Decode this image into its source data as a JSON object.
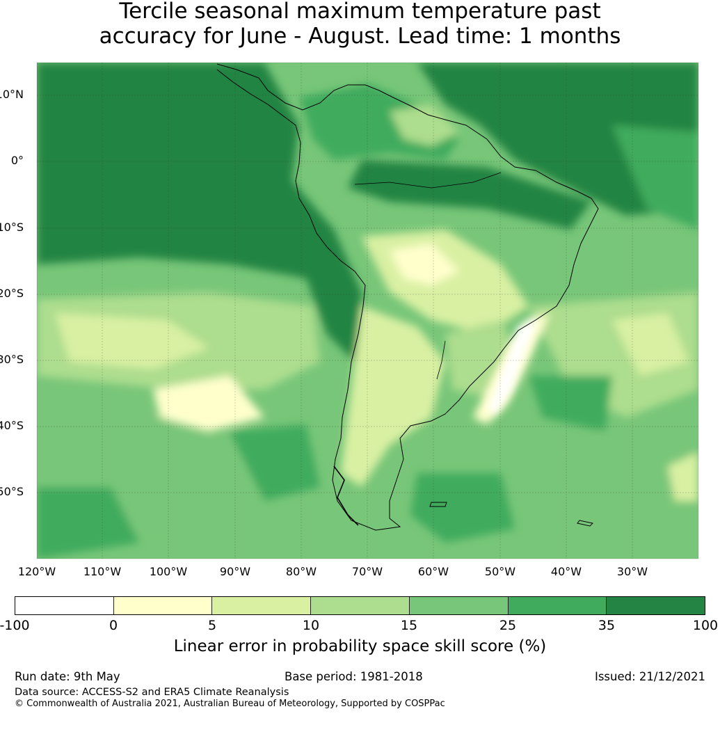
{
  "title": {
    "line1": "Tercile seasonal maximum temperature past",
    "line2": "accuracy for June - August. Lead time: 1 months"
  },
  "map": {
    "lat_labels": [
      "10°N",
      "0°",
      "10°S",
      "20°S",
      "30°S",
      "40°S",
      "50°S"
    ],
    "lon_labels": [
      "120°W",
      "110°W",
      "100°W",
      "90°W",
      "80°W",
      "70°W",
      "60°W",
      "50°W",
      "40°W",
      "30°W"
    ]
  },
  "colorbar": {
    "ticks": [
      "-100",
      "0",
      "5",
      "10",
      "15",
      "25",
      "35",
      "100"
    ],
    "colors": [
      "#ffffff",
      "#ffffcc",
      "#d9f0a3",
      "#addd8e",
      "#78c679",
      "#41ab5d",
      "#238443"
    ],
    "label": "Linear error in probability space skill score (%)"
  },
  "footer": {
    "run_date": "Run date: 9th May",
    "base_period": "Base period: 1981-2018",
    "issued": "Issued: 21/12/2021",
    "data_source": "Data source: ACCESS-S2 and ERA5 Climate Reanalysis",
    "copyright": "© Commonwealth of Australia 2021, Australian Bureau of Meteorology, Supported by COSPPac"
  }
}
